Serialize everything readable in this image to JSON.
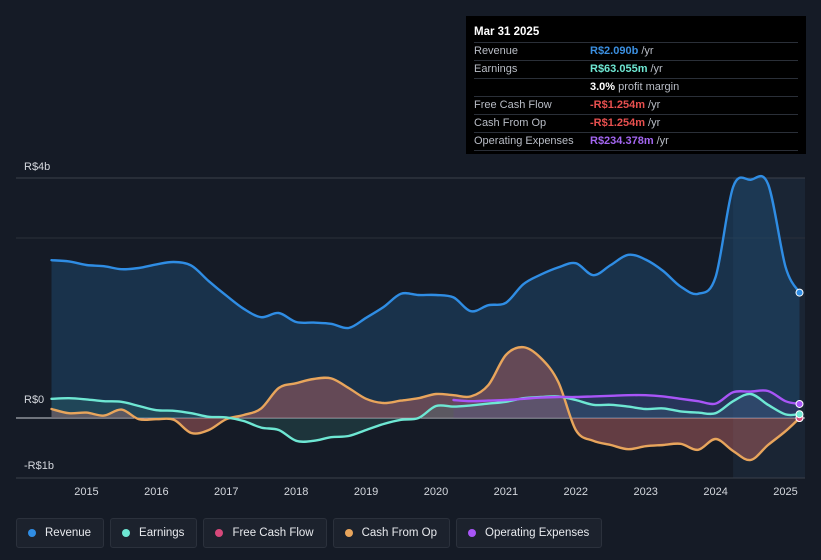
{
  "tooltip": {
    "date": "Mar 31 2025",
    "rows": [
      {
        "label": "Revenue",
        "value": "R$2.090b",
        "unit": "/yr",
        "color": "#3b8fe0"
      },
      {
        "label": "Earnings",
        "value": "R$63.055m",
        "unit": "/yr",
        "color": "#6ee7d3"
      },
      {
        "label": "",
        "value": "3.0%",
        "unit": "profit margin",
        "color": "#ffffff"
      },
      {
        "label": "Free Cash Flow",
        "value": "-R$1.254m",
        "unit": "/yr",
        "color": "#e8504f"
      },
      {
        "label": "Cash From Op",
        "value": "-R$1.254m",
        "unit": "/yr",
        "color": "#e8504f"
      },
      {
        "label": "Operating Expenses",
        "value": "R$234.378m",
        "unit": "/yr",
        "color": "#a366f0"
      }
    ]
  },
  "legend": [
    {
      "label": "Revenue",
      "color": "#2f8de4"
    },
    {
      "label": "Earnings",
      "color": "#6ee7d3"
    },
    {
      "label": "Free Cash Flow",
      "color": "#d6487a"
    },
    {
      "label": "Cash From Op",
      "color": "#e8a55c"
    },
    {
      "label": "Operating Expenses",
      "color": "#a855f7"
    }
  ],
  "chart_data": {
    "type": "area",
    "title": "",
    "xlabel": "",
    "ylabel": "",
    "ylim": [
      -1,
      4
    ],
    "y_tick_labels": [
      {
        "value": 4,
        "label": "R$4b"
      },
      {
        "value": 0,
        "label": "R$0"
      },
      {
        "value": -1,
        "label": "-R$1b"
      }
    ],
    "x_tick_labels": [
      "2015",
      "2016",
      "2017",
      "2018",
      "2019",
      "2020",
      "2021",
      "2022",
      "2023",
      "2024",
      "2025"
    ],
    "xlim": [
      2014.45,
      2025.25
    ],
    "highlight_start": 2024.25,
    "series": [
      {
        "name": "Revenue",
        "color": "#2f8de4",
        "x": [
          2014.5,
          2014.75,
          2015.0,
          2015.25,
          2015.5,
          2015.75,
          2016.0,
          2016.25,
          2016.5,
          2016.75,
          2017.0,
          2017.25,
          2017.5,
          2017.75,
          2018.0,
          2018.25,
          2018.5,
          2018.75,
          2019.0,
          2019.25,
          2019.5,
          2019.75,
          2020.0,
          2020.25,
          2020.5,
          2020.75,
          2021.0,
          2021.25,
          2021.5,
          2021.75,
          2022.0,
          2022.25,
          2022.5,
          2022.75,
          2023.0,
          2023.25,
          2023.5,
          2023.75,
          2024.0,
          2024.25,
          2024.5,
          2024.75,
          2025.0,
          2025.2
        ],
        "values": [
          2.63,
          2.61,
          2.55,
          2.53,
          2.48,
          2.5,
          2.56,
          2.6,
          2.54,
          2.28,
          2.04,
          1.82,
          1.68,
          1.75,
          1.6,
          1.59,
          1.57,
          1.5,
          1.67,
          1.85,
          2.07,
          2.05,
          2.05,
          2.01,
          1.78,
          1.88,
          1.92,
          2.23,
          2.39,
          2.51,
          2.58,
          2.38,
          2.55,
          2.72,
          2.64,
          2.45,
          2.19,
          2.07,
          2.35,
          3.85,
          3.97,
          3.9,
          2.52,
          2.09
        ]
      },
      {
        "name": "Earnings",
        "color": "#6ee7d3",
        "x": [
          2014.5,
          2014.75,
          2015.0,
          2015.25,
          2015.5,
          2015.75,
          2016.0,
          2016.25,
          2016.5,
          2016.75,
          2017.0,
          2017.25,
          2017.5,
          2017.75,
          2018.0,
          2018.25,
          2018.5,
          2018.75,
          2019.0,
          2019.25,
          2019.5,
          2019.75,
          2020.0,
          2020.25,
          2020.5,
          2020.75,
          2021.0,
          2021.25,
          2021.5,
          2021.75,
          2022.0,
          2022.25,
          2022.5,
          2022.75,
          2023.0,
          2023.25,
          2023.5,
          2023.75,
          2024.0,
          2024.25,
          2024.5,
          2024.75,
          2025.0,
          2025.2
        ],
        "values": [
          0.32,
          0.33,
          0.31,
          0.28,
          0.27,
          0.2,
          0.13,
          0.12,
          0.08,
          0.02,
          0.01,
          -0.05,
          -0.16,
          -0.2,
          -0.38,
          -0.38,
          -0.32,
          -0.3,
          -0.2,
          -0.1,
          -0.03,
          0.0,
          0.2,
          0.19,
          0.21,
          0.24,
          0.27,
          0.33,
          0.35,
          0.36,
          0.3,
          0.22,
          0.22,
          0.19,
          0.15,
          0.16,
          0.11,
          0.09,
          0.08,
          0.28,
          0.4,
          0.22,
          0.06,
          0.063
        ]
      },
      {
        "name": "Cash From Op",
        "color": "#e8a55c",
        "x": [
          2014.5,
          2014.75,
          2015.0,
          2015.25,
          2015.5,
          2015.75,
          2016.0,
          2016.25,
          2016.5,
          2016.75,
          2017.0,
          2017.25,
          2017.5,
          2017.75,
          2018.0,
          2018.25,
          2018.5,
          2018.75,
          2019.0,
          2019.25,
          2019.5,
          2019.75,
          2020.0,
          2020.25,
          2020.5,
          2020.75,
          2021.0,
          2021.25,
          2021.5,
          2021.75,
          2022.0,
          2022.25,
          2022.5,
          2022.75,
          2023.0,
          2023.25,
          2023.5,
          2023.75,
          2024.0,
          2024.25,
          2024.5,
          2024.75,
          2025.0,
          2025.2
        ],
        "values": [
          0.15,
          0.08,
          0.09,
          0.04,
          0.14,
          -0.02,
          -0.02,
          -0.03,
          -0.25,
          -0.2,
          -0.02,
          0.05,
          0.16,
          0.5,
          0.58,
          0.65,
          0.66,
          0.5,
          0.32,
          0.25,
          0.29,
          0.33,
          0.4,
          0.38,
          0.36,
          0.55,
          1.05,
          1.18,
          1.0,
          0.6,
          -0.2,
          -0.38,
          -0.45,
          -0.52,
          -0.47,
          -0.45,
          -0.43,
          -0.53,
          -0.35,
          -0.55,
          -0.7,
          -0.45,
          -0.22,
          -0.001
        ]
      },
      {
        "name": "Free Cash Flow",
        "color": "#d6487a",
        "x": [
          2014.5,
          2014.75,
          2015.0,
          2015.25,
          2015.5,
          2015.75,
          2016.0,
          2016.25,
          2016.5,
          2016.75,
          2017.0,
          2017.25,
          2017.5,
          2017.75,
          2018.0,
          2018.25,
          2018.5,
          2018.75,
          2019.0,
          2019.25,
          2019.5,
          2019.75,
          2020.0,
          2020.25,
          2020.5,
          2020.75,
          2021.0,
          2021.25,
          2021.5,
          2021.75,
          2022.0,
          2022.25,
          2022.5,
          2022.75,
          2023.0,
          2023.25,
          2023.5,
          2023.75,
          2024.0,
          2024.25,
          2024.5,
          2024.75,
          2025.0,
          2025.2
        ],
        "values": [
          0.15,
          0.08,
          0.09,
          0.04,
          0.14,
          -0.02,
          -0.02,
          -0.03,
          -0.25,
          -0.2,
          -0.02,
          0.05,
          0.16,
          0.5,
          0.58,
          0.65,
          0.66,
          0.5,
          0.32,
          0.25,
          0.29,
          0.33,
          0.4,
          0.38,
          0.36,
          0.55,
          1.05,
          1.18,
          1.0,
          0.6,
          -0.2,
          -0.38,
          -0.45,
          -0.52,
          -0.47,
          -0.45,
          -0.43,
          -0.53,
          -0.35,
          -0.55,
          -0.7,
          -0.45,
          -0.22,
          -0.001
        ]
      },
      {
        "name": "Operating Expenses",
        "color": "#a855f7",
        "x": [
          2020.25,
          2020.5,
          2020.75,
          2021.0,
          2021.25,
          2021.5,
          2021.75,
          2022.0,
          2022.25,
          2022.5,
          2022.75,
          2023.0,
          2023.25,
          2023.5,
          2023.75,
          2024.0,
          2024.25,
          2024.5,
          2024.75,
          2025.0,
          2025.2
        ],
        "values": [
          0.3,
          0.28,
          0.29,
          0.3,
          0.32,
          0.34,
          0.35,
          0.35,
          0.36,
          0.37,
          0.38,
          0.38,
          0.36,
          0.32,
          0.28,
          0.24,
          0.43,
          0.44,
          0.45,
          0.28,
          0.234
        ]
      }
    ]
  }
}
